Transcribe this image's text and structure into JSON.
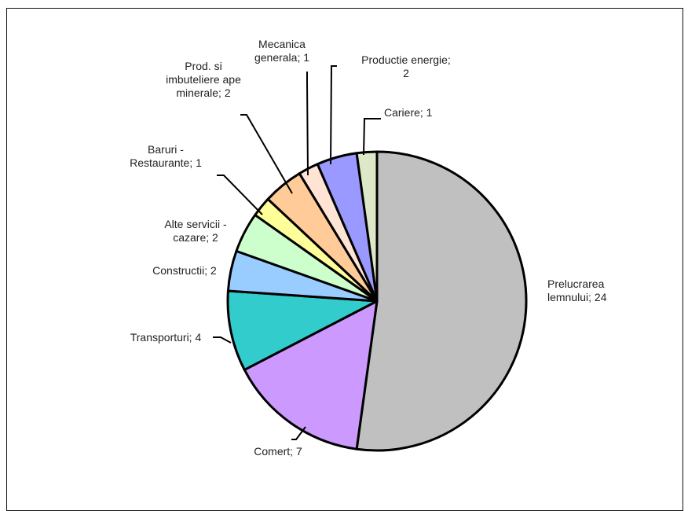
{
  "chart_data": {
    "type": "pie",
    "title": "",
    "legend": "none",
    "start_angle_deg": 0,
    "direction": "clockwise",
    "slices": [
      {
        "category": "Prelucrarea lemnului",
        "value": 24,
        "label_lines": [
          "Prelucrarea",
          "lemnului; 24"
        ],
        "color": "#c0c0c0"
      },
      {
        "category": "Comert",
        "value": 7,
        "label_lines": [
          "Comert; 7"
        ],
        "color": "#cc99ff"
      },
      {
        "category": "Transporturi",
        "value": 4,
        "label_lines": [
          "Transporturi; 4"
        ],
        "color": "#33cccc"
      },
      {
        "category": "Constructii",
        "value": 2,
        "label_lines": [
          "Constructii; 2"
        ],
        "color": "#99ccff"
      },
      {
        "category": "Alte servicii - cazare",
        "value": 2,
        "label_lines": [
          "Alte servicii -",
          "cazare; 2"
        ],
        "color": "#ccffcc"
      },
      {
        "category": "Baruri - Restaurante",
        "value": 1,
        "label_lines": [
          "Baruri -",
          "Restaurante; 1"
        ],
        "color": "#ffff99"
      },
      {
        "category": "Prod. si imbuteliere ape minerale",
        "value": 2,
        "label_lines": [
          "Prod. si",
          "imbuteliere ape",
          "minerale; 2"
        ],
        "color": "#ffcc99"
      },
      {
        "category": "Mecanica generala",
        "value": 1,
        "label_lines": [
          "Mecanica",
          "generala; 1"
        ],
        "color": "#ffe4d6"
      },
      {
        "category": "Productie energie",
        "value": 2,
        "label_lines": [
          "Productie energie;",
          "2"
        ],
        "color": "#9999ff"
      },
      {
        "category": "Cariere",
        "value": 1,
        "label_lines": [
          "Cariere; 1"
        ],
        "color": "#dde8c8"
      }
    ]
  }
}
